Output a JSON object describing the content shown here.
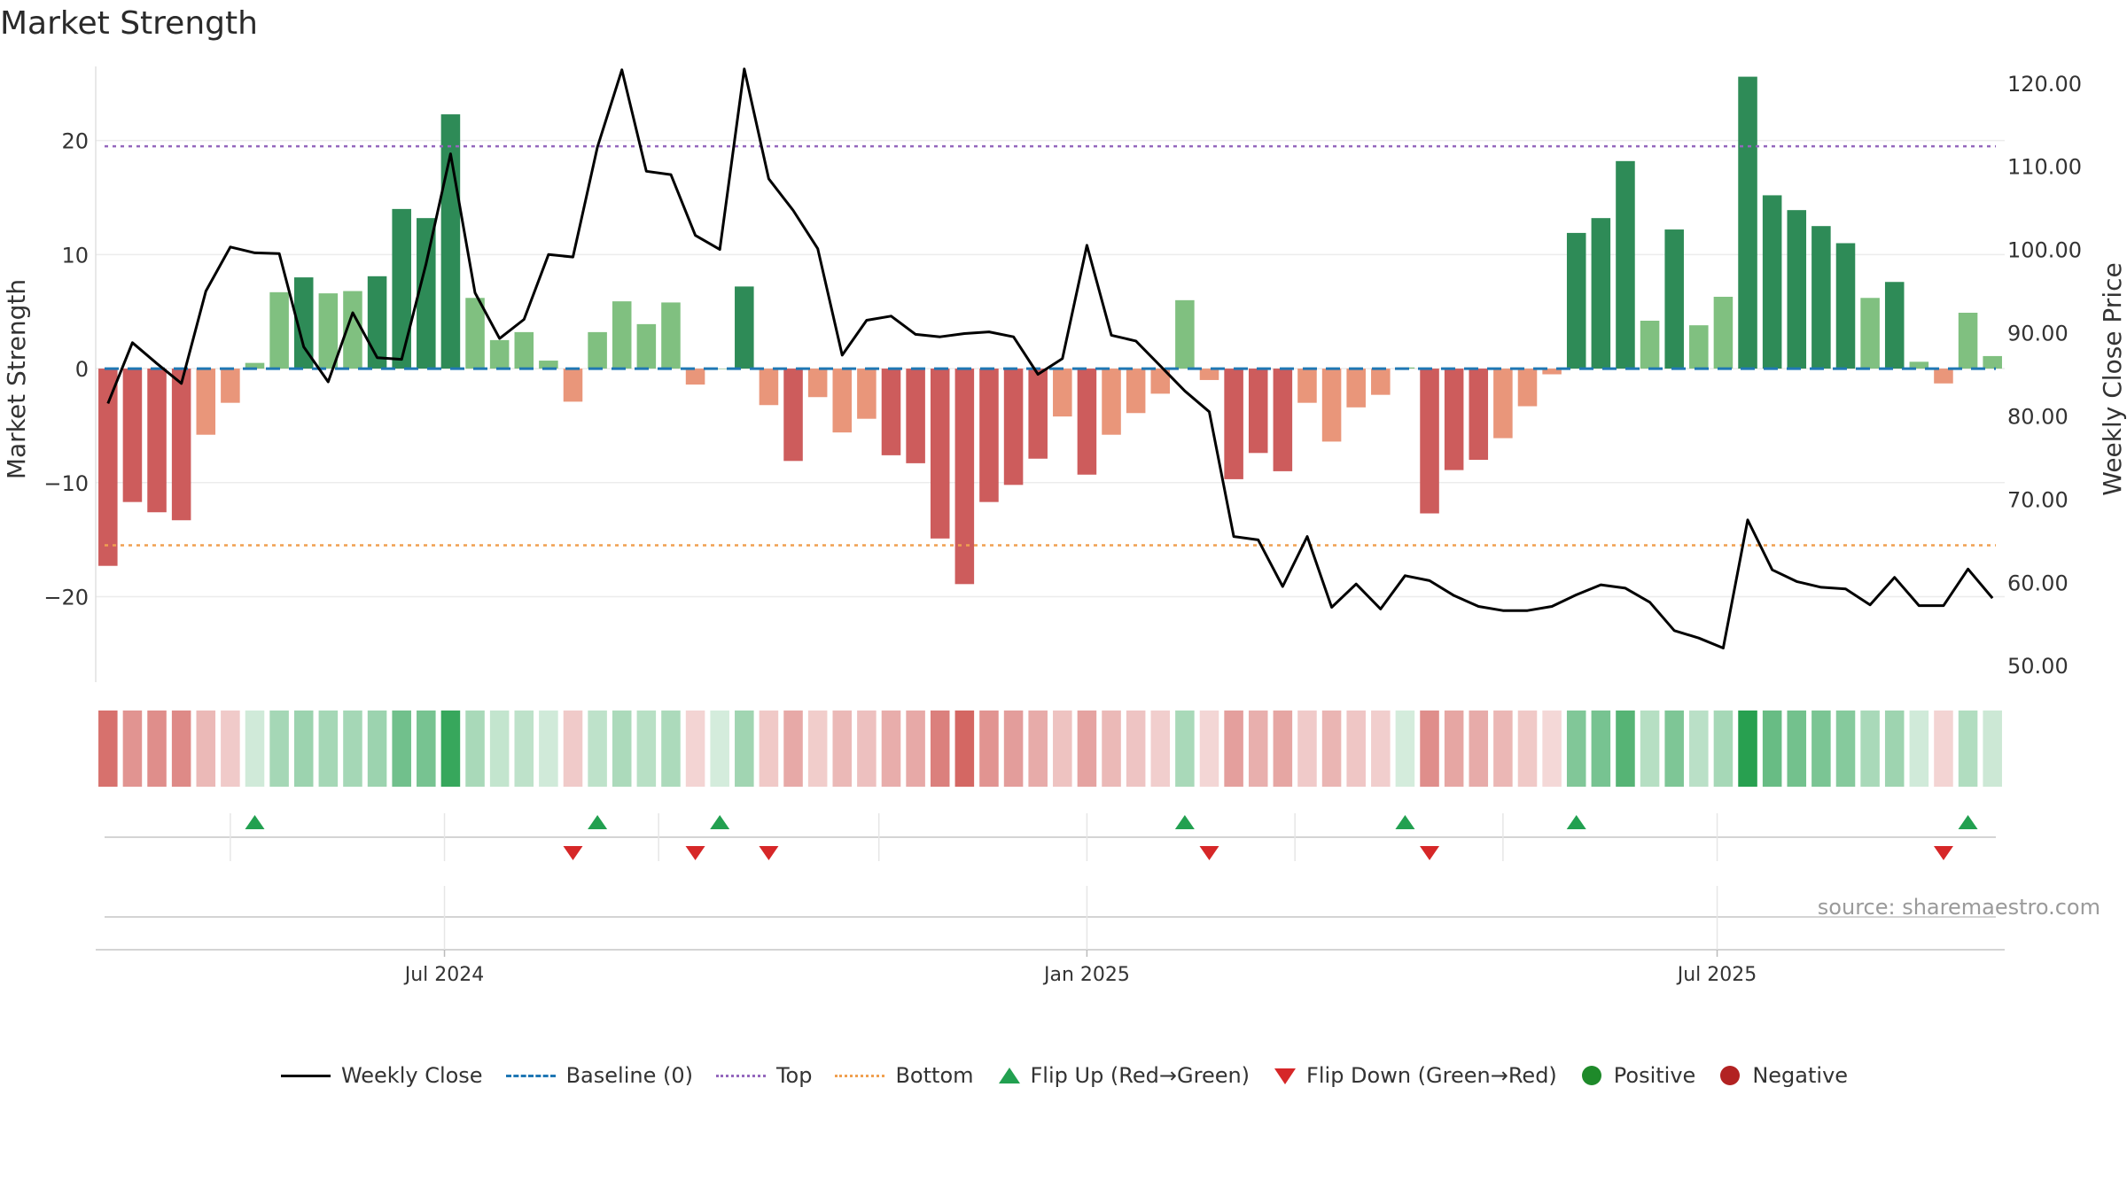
{
  "title": "Market Strength",
  "source": "source: sharemaestro.com",
  "chart_data": {
    "type": "bar",
    "title": "Market Strength",
    "ylabel": "Market Strength",
    "y2label": "Weekly Close Price",
    "ylim": [
      -27.5,
      26.5
    ],
    "y2lim": [
      48,
      122
    ],
    "yticks": [
      "−20",
      "−10",
      "0",
      "10",
      "20"
    ],
    "yticks_values": [
      -20,
      -10,
      0,
      10,
      20
    ],
    "y2ticks": [
      "50.00",
      "60.00",
      "70.00",
      "80.00",
      "90.00",
      "100.00",
      "110.00",
      "120.00"
    ],
    "y2ticks_values": [
      50,
      60,
      70,
      80,
      90,
      100,
      110,
      120
    ],
    "top_threshold": 19.5,
    "bottom_threshold": -15.5,
    "baseline": 0,
    "x_labels": [
      "Jul 2024",
      "Jan 2025",
      "Jul 2025"
    ],
    "x_label_positions": [
      14.25,
      40.5,
      66.25
    ],
    "month_lines": [
      5.5,
      14.25,
      23,
      32,
      40.5,
      49,
      57.5,
      66.25
    ],
    "weeks": 78,
    "strength": [
      -17.3,
      -11.7,
      -12.6,
      -13.3,
      -5.8,
      -3.0,
      0.5,
      6.7,
      8.0,
      6.6,
      6.8,
      8.1,
      14.0,
      13.2,
      22.3,
      6.2,
      2.5,
      3.2,
      0.7,
      -2.9,
      3.2,
      5.9,
      3.9,
      5.8,
      -1.4,
      0.0,
      7.2,
      -3.2,
      -8.1,
      -2.5,
      -5.6,
      -4.4,
      -7.6,
      -8.3,
      -14.9,
      -18.9,
      -11.7,
      -10.2,
      -7.9,
      -4.2,
      -9.3,
      -5.8,
      -3.9,
      -2.2,
      6.0,
      -1.0,
      -9.7,
      -7.4,
      -9.0,
      -3.0,
      -6.4,
      -3.4,
      -2.3,
      0.1,
      -12.7,
      -8.9,
      -8.0,
      -6.1,
      -3.3,
      -0.5,
      11.9,
      13.2,
      18.2,
      4.2,
      12.2,
      3.8,
      6.3,
      25.6,
      15.2,
      13.9,
      12.5,
      11.0,
      6.2,
      7.6,
      0.6,
      -1.3,
      4.9,
      1.1
    ],
    "weekly_close": [
      81.5,
      88.8,
      86.3,
      83.9,
      95.0,
      100.3,
      99.6,
      99.5,
      88.3,
      84.1,
      92.4,
      87.0,
      86.8,
      98.3,
      111.5,
      94.8,
      89.3,
      91.6,
      99.4,
      99.1,
      112.3,
      121.6,
      109.4,
      109.0,
      101.7,
      100.0,
      121.7,
      108.5,
      104.7,
      100.1,
      87.3,
      91.5,
      92.0,
      89.8,
      89.5,
      89.9,
      90.1,
      89.5,
      85.0,
      86.9,
      100.5,
      89.7,
      89.0,
      86.0,
      83.0,
      80.5,
      65.5,
      65.1,
      59.5,
      65.5,
      57.0,
      59.8,
      56.8,
      60.8,
      60.2,
      58.4,
      57.1,
      56.6,
      56.6,
      57.1,
      58.5,
      59.7,
      59.3,
      57.6,
      54.2,
      53.3,
      52.1,
      67.5,
      61.5,
      60.1,
      59.4,
      59.2,
      57.3,
      60.6,
      57.2,
      57.2,
      61.6,
      58.1
    ],
    "flips_up": [
      6,
      20,
      25,
      44,
      53,
      60,
      76
    ],
    "flips_down": [
      19,
      24,
      27,
      45,
      54,
      75
    ]
  },
  "legend": {
    "weekly_close": "Weekly Close",
    "baseline": "Baseline (0)",
    "top": "Top",
    "bottom": "Bottom",
    "flip_up": "Flip Up (Red→Green)",
    "flip_down": "Flip Down (Green→Red)",
    "positive": "Positive",
    "negative": "Negative"
  },
  "colors": {
    "strong_green": "#2e8b57",
    "light_green": "#80c080",
    "strong_red": "#cd5c5c",
    "light_red": "#e9967a",
    "line": "#000000",
    "baseline": "#1f77b4",
    "top": "#9467bd",
    "bottom": "#f0a050",
    "flip_up": "#22a050",
    "flip_down": "#d62728"
  }
}
